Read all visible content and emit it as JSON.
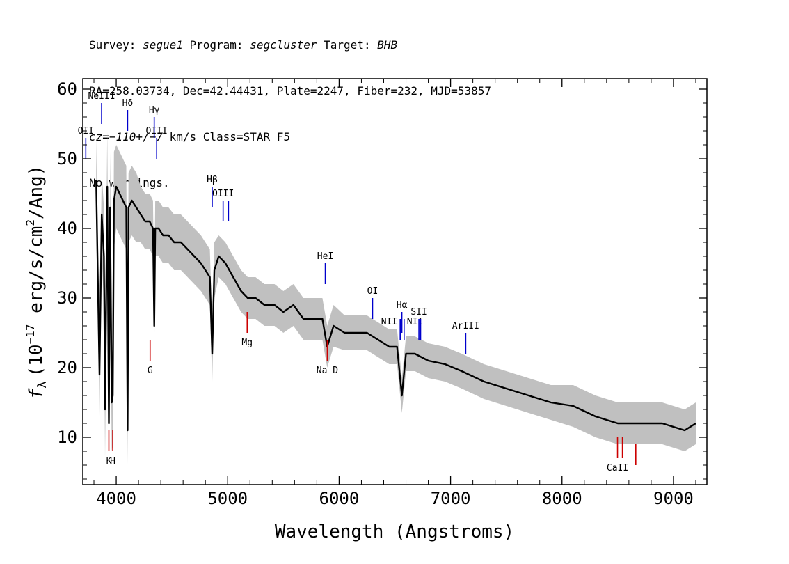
{
  "header": {
    "line1": {
      "a": "Survey: ",
      "survey": "segue1",
      "b": " Program: ",
      "program": "segcluster",
      "c": " Target: ",
      "target": "BHB"
    },
    "line2": "RA=258.03734, Dec=42.44431, Plate=2247, Fiber=232, MJD=53857",
    "line3": {
      "cz": "cz=−110+/−7",
      "rest": " km/s Class=STAR F5"
    },
    "line4": "No warnings."
  },
  "chart_data": {
    "type": "line",
    "xlabel": "Wavelength (Angstroms)",
    "ylabel_prefix": "f",
    "ylabel_sub": "λ",
    "ylabel_unit": "(10",
    "ylabel_exp": "−17",
    "ylabel_tail": " erg/s/cm",
    "ylabel_exp2": "2",
    "ylabel_end": "/Ang)",
    "xlim": [
      3700,
      9300
    ],
    "ylim": [
      3.2,
      61.5
    ],
    "xticks": [
      4000,
      5000,
      6000,
      7000,
      8000,
      9000
    ],
    "yticks": [
      10,
      20,
      30,
      40,
      50,
      60
    ],
    "xtick_labels": [
      "4000",
      "5000",
      "6000",
      "7000",
      "8000",
      "9000"
    ],
    "ytick_labels": [
      "10",
      "20",
      "30",
      "40",
      "50",
      "60"
    ],
    "series": [
      {
        "color": "#000000",
        "x": [
          3820,
          3850,
          3870,
          3890,
          3900,
          3920,
          3934,
          3945,
          3960,
          3969,
          3980,
          4000,
          4030,
          4060,
          4090,
          4102,
          4110,
          4140,
          4180,
          4220,
          4260,
          4300,
          4330,
          4341,
          4350,
          4380,
          4420,
          4470,
          4520,
          4580,
          4640,
          4700,
          4760,
          4800,
          4840,
          4861,
          4880,
          4920,
          4980,
          5050,
          5120,
          5180,
          5250,
          5330,
          5420,
          5500,
          5590,
          5680,
          5760,
          5850,
          5893,
          5950,
          6050,
          6150,
          6250,
          6350,
          6450,
          6520,
          6563,
          6600,
          6680,
          6800,
          6950,
          7100,
          7300,
          7500,
          7700,
          7900,
          8100,
          8300,
          8500,
          8700,
          8900,
          9100,
          9200
        ],
        "y": [
          47,
          19,
          42,
          36,
          14,
          46,
          12,
          43,
          15,
          16,
          44,
          46,
          45,
          44,
          43,
          11,
          43,
          44,
          43,
          42,
          41,
          41,
          40,
          26,
          40,
          40,
          39,
          39,
          38,
          38,
          37,
          36,
          35,
          34,
          33,
          22,
          34,
          36,
          35,
          33,
          31,
          30,
          30,
          29,
          29,
          28,
          29,
          27,
          27,
          27,
          23,
          26,
          25,
          25,
          25,
          24,
          23,
          23,
          16,
          22,
          22,
          21,
          20.5,
          19.5,
          18,
          17,
          16,
          15,
          14.5,
          13,
          12,
          12,
          12,
          11,
          12
        ]
      }
    ],
    "error_band": {
      "color": "#c0c0c0",
      "width": [
        6,
        6,
        6,
        7,
        7,
        8,
        8,
        8,
        7,
        7,
        7,
        6,
        6,
        6,
        6,
        5,
        5,
        5,
        5,
        4,
        4,
        4,
        4,
        4,
        4,
        4,
        4,
        4,
        4,
        4,
        4,
        4,
        4,
        4,
        4,
        4,
        4,
        3,
        3,
        3,
        3,
        3,
        3,
        3,
        3,
        3,
        3,
        3,
        3,
        3,
        3,
        3,
        2.5,
        2.5,
        2.5,
        2.5,
        2.5,
        2.5,
        2.5,
        2.5,
        2.5,
        2.5,
        2.5,
        2.5,
        2.5,
        2.5,
        2.5,
        2.5,
        3,
        3,
        3,
        3,
        3,
        3,
        3
      ]
    },
    "lines": [
      {
        "label": "OII",
        "x": 3727,
        "y_top": 53,
        "y_bot": 50,
        "color": "#0000cc",
        "side": "top"
      },
      {
        "label": "NeIII",
        "x": 3869,
        "y_top": 58,
        "y_bot": 55,
        "color": "#0000cc",
        "side": "top"
      },
      {
        "label": "Hδ",
        "x": 4102,
        "y_top": 57,
        "y_bot": 54,
        "color": "#0000cc",
        "side": "top"
      },
      {
        "label": "Hγ",
        "x": 4341,
        "y_top": 56,
        "y_bot": 53,
        "color": "#0000cc",
        "side": "top"
      },
      {
        "label": "OIII",
        "x": 4363,
        "y_top": 53,
        "y_bot": 50,
        "color": "#0000cc",
        "side": "top"
      },
      {
        "label": "Hβ",
        "x": 4861,
        "y_top": 46,
        "y_bot": 43,
        "color": "#0000cc",
        "side": "top"
      },
      {
        "label": "OIII",
        "x": 4959,
        "y_top": 44,
        "y_bot": 41,
        "color": "#0000cc",
        "side": "top"
      },
      {
        "label": "",
        "x": 5007,
        "y_top": 44,
        "y_bot": 41,
        "color": "#0000cc",
        "side": "top"
      },
      {
        "label": "HeI",
        "x": 5876,
        "y_top": 35,
        "y_bot": 32,
        "color": "#0000cc",
        "side": "top"
      },
      {
        "label": "OI",
        "x": 6300,
        "y_top": 30,
        "y_bot": 27,
        "color": "#0000cc",
        "side": "top"
      },
      {
        "label": "NII",
        "x": 6548,
        "y_top": 27,
        "y_bot": 24,
        "color": "#0000cc",
        "side": "left"
      },
      {
        "label": "Hα",
        "x": 6563,
        "y_top": 28,
        "y_bot": 25,
        "color": "#0000cc",
        "side": "top"
      },
      {
        "label": "NII",
        "x": 6583,
        "y_top": 27,
        "y_bot": 24,
        "color": "#0000cc",
        "side": "right"
      },
      {
        "label": "SII",
        "x": 6716,
        "y_top": 27,
        "y_bot": 24,
        "color": "#0000cc",
        "side": "top"
      },
      {
        "label": "",
        "x": 6731,
        "y_top": 27,
        "y_bot": 24,
        "color": "#0000cc",
        "side": "top"
      },
      {
        "label": "ArIII",
        "x": 7136,
        "y_top": 25,
        "y_bot": 22,
        "color": "#0000cc",
        "side": "top"
      },
      {
        "label": "K",
        "x": 3934,
        "y_top": 11,
        "y_bot": 8,
        "color": "#cc0000",
        "side": "bottom"
      },
      {
        "label": "H",
        "x": 3969,
        "y_top": 11,
        "y_bot": 8,
        "color": "#cc0000",
        "side": "bottom"
      },
      {
        "label": "G",
        "x": 4304,
        "y_top": 24,
        "y_bot": 21,
        "color": "#cc0000",
        "side": "bottom"
      },
      {
        "label": "Mg",
        "x": 5175,
        "y_top": 28,
        "y_bot": 25,
        "color": "#cc0000",
        "side": "bottom"
      },
      {
        "label": "Na  D",
        "x": 5894,
        "y_top": 24,
        "y_bot": 21,
        "color": "#cc0000",
        "side": "bottom"
      },
      {
        "label": "CaII",
        "x": 8498,
        "y_top": 10,
        "y_bot": 7,
        "color": "#cc0000",
        "side": "bottom"
      },
      {
        "label": "",
        "x": 8542,
        "y_top": 10,
        "y_bot": 7,
        "color": "#cc0000",
        "side": "bottom"
      },
      {
        "label": "",
        "x": 8662,
        "y_top": 9,
        "y_bot": 6,
        "color": "#cc0000",
        "side": "bottom"
      }
    ]
  }
}
